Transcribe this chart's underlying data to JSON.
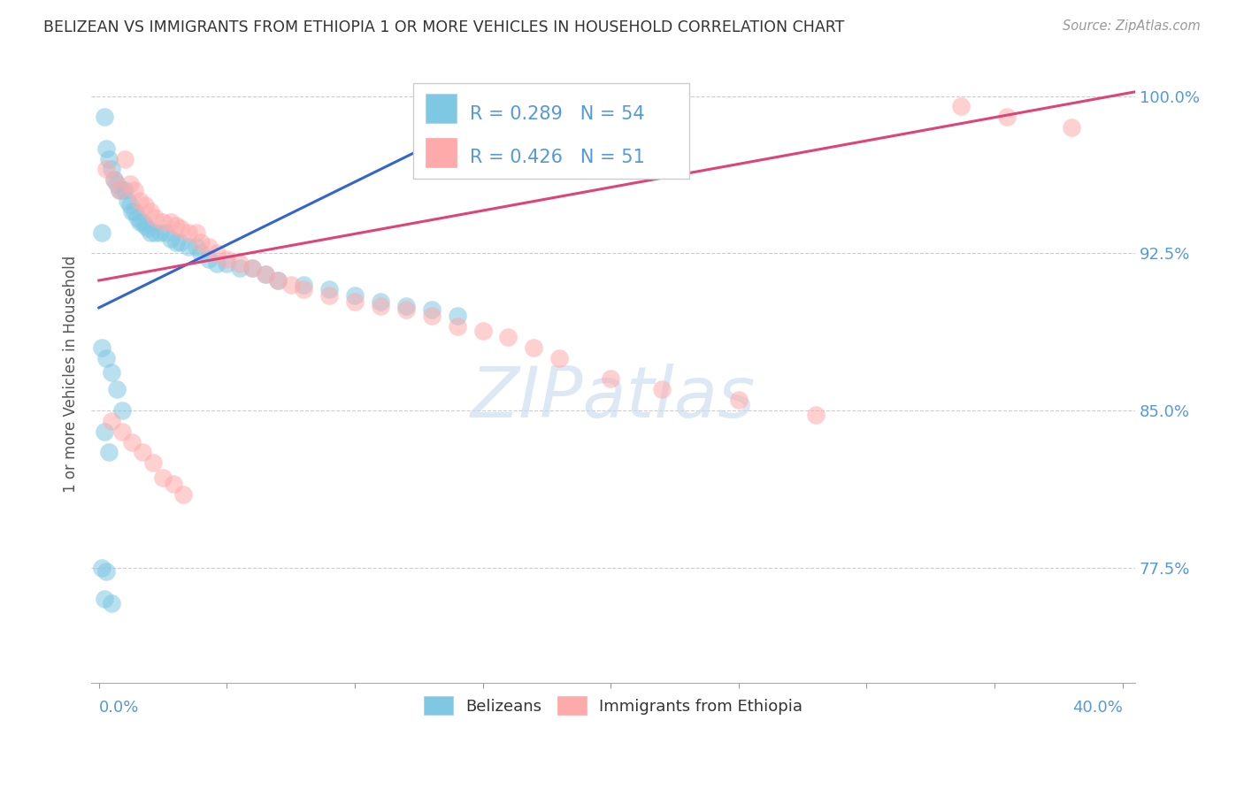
{
  "title": "BELIZEAN VS IMMIGRANTS FROM ETHIOPIA 1 OR MORE VEHICLES IN HOUSEHOLD CORRELATION CHART",
  "source": "Source: ZipAtlas.com",
  "ylabel": "1 or more Vehicles in Household",
  "ylim": [
    0.72,
    1.015
  ],
  "xlim": [
    -0.003,
    0.405
  ],
  "yticks": [
    0.775,
    0.85,
    0.925,
    1.0
  ],
  "ytick_labels": [
    "77.5%",
    "85.0%",
    "92.5%",
    "100.0%"
  ],
  "legend_blue_r": "0.289",
  "legend_blue_n": "54",
  "legend_pink_r": "0.426",
  "legend_pink_n": "51",
  "blue_color": "#7ec8e3",
  "pink_color": "#ffaaaa",
  "line_blue": "#3366cc",
  "line_pink": "#dd4477",
  "axis_label_color": "#5599dd",
  "grid_color": "#cccccc",
  "blue_line_x": [
    0.0,
    0.16
  ],
  "blue_line_y": [
    0.899,
    0.995
  ],
  "pink_line_x": [
    0.0,
    0.405
  ],
  "pink_line_y": [
    0.912,
    1.002
  ],
  "bx": [
    0.001,
    0.002,
    0.003,
    0.004,
    0.005,
    0.006,
    0.007,
    0.008,
    0.009,
    0.01,
    0.011,
    0.012,
    0.013,
    0.014,
    0.015,
    0.016,
    0.017,
    0.018,
    0.019,
    0.02,
    0.022,
    0.024,
    0.026,
    0.028,
    0.03,
    0.032,
    0.035,
    0.038,
    0.04,
    0.043,
    0.046,
    0.05,
    0.055,
    0.06,
    0.065,
    0.07,
    0.08,
    0.09,
    0.1,
    0.11,
    0.12,
    0.13,
    0.14,
    0.001,
    0.003,
    0.005,
    0.007,
    0.009,
    0.002,
    0.004,
    0.001,
    0.003,
    0.002,
    0.005
  ],
  "by": [
    0.935,
    0.99,
    0.975,
    0.97,
    0.965,
    0.96,
    0.958,
    0.955,
    0.955,
    0.955,
    0.95,
    0.948,
    0.945,
    0.945,
    0.942,
    0.94,
    0.94,
    0.938,
    0.937,
    0.935,
    0.935,
    0.935,
    0.935,
    0.932,
    0.93,
    0.93,
    0.928,
    0.928,
    0.925,
    0.922,
    0.92,
    0.92,
    0.918,
    0.918,
    0.915,
    0.912,
    0.91,
    0.908,
    0.905,
    0.902,
    0.9,
    0.898,
    0.895,
    0.88,
    0.875,
    0.868,
    0.86,
    0.85,
    0.84,
    0.83,
    0.775,
    0.773,
    0.76,
    0.758
  ],
  "ex": [
    0.003,
    0.006,
    0.008,
    0.01,
    0.012,
    0.014,
    0.016,
    0.018,
    0.02,
    0.022,
    0.025,
    0.028,
    0.03,
    0.032,
    0.035,
    0.038,
    0.04,
    0.043,
    0.046,
    0.05,
    0.055,
    0.06,
    0.065,
    0.07,
    0.075,
    0.08,
    0.09,
    0.1,
    0.11,
    0.12,
    0.13,
    0.14,
    0.15,
    0.16,
    0.17,
    0.18,
    0.2,
    0.22,
    0.25,
    0.28,
    0.005,
    0.009,
    0.013,
    0.017,
    0.021,
    0.025,
    0.029,
    0.033,
    0.337,
    0.355,
    0.38
  ],
  "ey": [
    0.965,
    0.96,
    0.955,
    0.97,
    0.958,
    0.955,
    0.95,
    0.948,
    0.945,
    0.942,
    0.94,
    0.94,
    0.938,
    0.937,
    0.935,
    0.935,
    0.93,
    0.928,
    0.925,
    0.922,
    0.92,
    0.918,
    0.915,
    0.912,
    0.91,
    0.908,
    0.905,
    0.902,
    0.9,
    0.898,
    0.895,
    0.89,
    0.888,
    0.885,
    0.88,
    0.875,
    0.865,
    0.86,
    0.855,
    0.848,
    0.845,
    0.84,
    0.835,
    0.83,
    0.825,
    0.818,
    0.815,
    0.81,
    0.995,
    0.99,
    0.985
  ]
}
